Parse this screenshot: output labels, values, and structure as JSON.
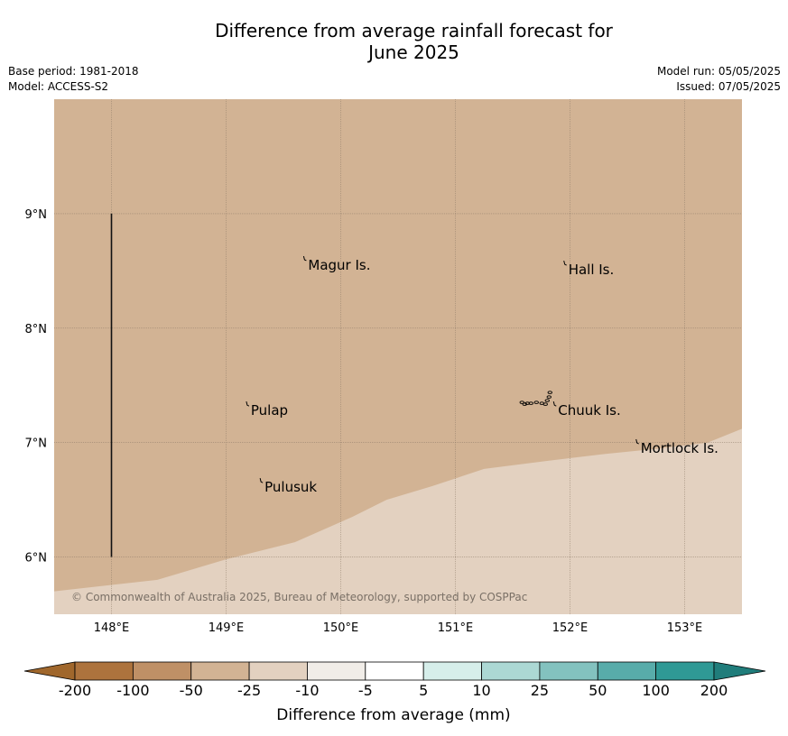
{
  "title_line1": "Difference from average rainfall forecast for",
  "title_line2": "June 2025",
  "base_period": "Base period: 1981-2018",
  "model": "Model: ACCESS-S2",
  "model_run": "Model run: 05/05/2025",
  "issued": "Issued: 07/05/2025",
  "copyright": "© Commonwealth of Australia 2025, Bureau of Meteorology, supported by COSPPac",
  "map": {
    "lon_range": [
      147.5,
      153.5
    ],
    "lat_range": [
      5.5,
      10.0
    ],
    "lon_ticks": [
      148,
      149,
      150,
      151,
      152,
      153
    ],
    "lon_tick_labels": [
      "148°E",
      "149°E",
      "150°E",
      "151°E",
      "152°E",
      "153°E"
    ],
    "lat_ticks": [
      6,
      7,
      8,
      9
    ],
    "lat_tick_labels": [
      "6°N",
      "7°N",
      "8°N",
      "9°N"
    ],
    "gridlines": true,
    "regions": [
      {
        "category": "-50 to -25",
        "color": "#d2b394"
      },
      {
        "category": "-25 to -10",
        "color": "#e3d1c0"
      }
    ],
    "boundary": [
      [
        147.5,
        5.7
      ],
      [
        148.4,
        5.8
      ],
      [
        149.0,
        5.98
      ],
      [
        149.6,
        6.13
      ],
      [
        150.1,
        6.35
      ],
      [
        150.4,
        6.5
      ],
      [
        150.8,
        6.62
      ],
      [
        151.25,
        6.77
      ],
      [
        151.8,
        6.84
      ],
      [
        152.3,
        6.9
      ],
      [
        152.8,
        6.95
      ],
      [
        153.2,
        7.0
      ],
      [
        153.5,
        7.12
      ]
    ],
    "vertical_line": {
      "lon": 148.0,
      "lat_from": 6.0,
      "lat_to": 9.0
    },
    "places": [
      {
        "name": "Magur Is.",
        "lon": 149.7,
        "lat": 8.55
      },
      {
        "name": "Hall Is.",
        "lon": 151.97,
        "lat": 8.51
      },
      {
        "name": "Pulap",
        "lon": 149.2,
        "lat": 7.28
      },
      {
        "name": "Chuuk Is.",
        "lon": 151.88,
        "lat": 7.28
      },
      {
        "name": "Mortlock Is.",
        "lon": 152.6,
        "lat": 6.95
      },
      {
        "name": "Pulusuk",
        "lon": 149.32,
        "lat": 6.61
      }
    ]
  },
  "legend": {
    "label": "Difference from average (mm)",
    "ticks": [
      "-200",
      "-100",
      "-50",
      "-25",
      "-10",
      "-5",
      "5",
      "10",
      "25",
      "50",
      "100",
      "200"
    ],
    "under_color": "#a0672c",
    "over_color": "#207d7b",
    "colors": [
      "#ad733d",
      "#bf9066",
      "#d2b394",
      "#e3d1c0",
      "#f1ede8",
      "#ffffff",
      "#d6eeea",
      "#acd8d4",
      "#83c2bf",
      "#58acaa",
      "#2f9995"
    ]
  }
}
